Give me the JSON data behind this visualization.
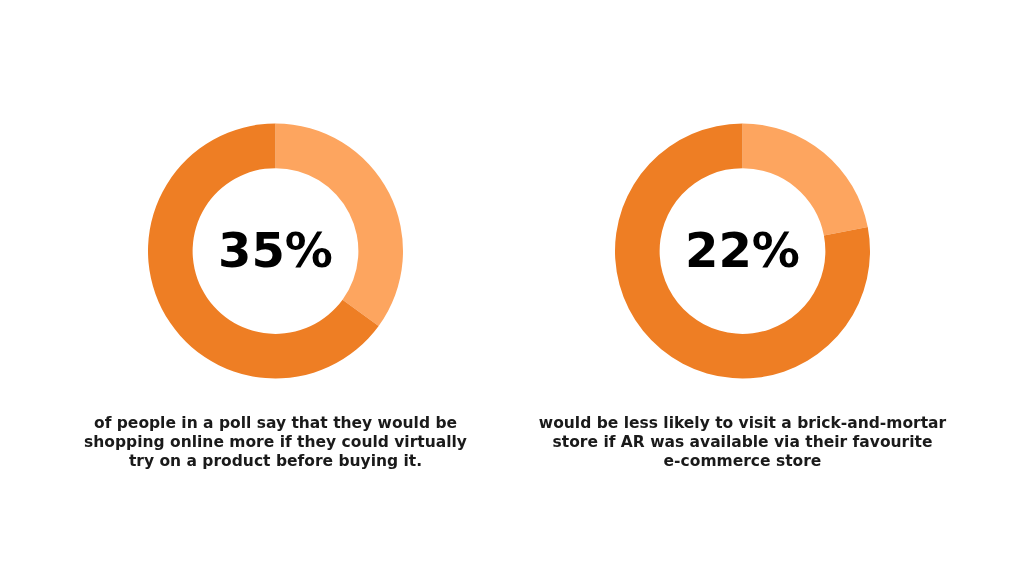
{
  "chart_data": [
    {
      "type": "donut",
      "categories": [
        null,
        null
      ],
      "values": [
        35,
        65
      ],
      "colors": [
        "#fda55f",
        "#ee7e24"
      ],
      "annotations": [
        "35%",
        "of people in a poll say that they would be\nshopping online more if they could virtually\ntry on a product before buying it."
      ]
    },
    {
      "type": "donut",
      "categories": [
        null,
        null
      ],
      "values": [
        22,
        78
      ],
      "colors": [
        "#fda55f",
        "#ee7e24"
      ],
      "annotations": [
        "22%",
        "would be less likely to visit a brick-and-mortar\nstore if AR was available via their favourite\ne-commerce store"
      ]
    }
  ]
}
